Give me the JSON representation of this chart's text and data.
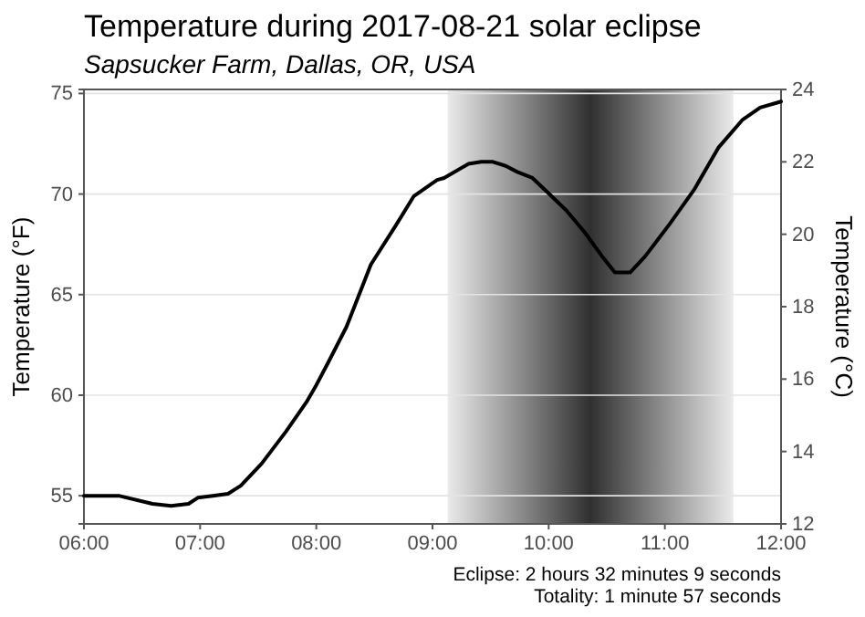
{
  "chart_data": {
    "type": "line",
    "title": "Temperature during 2017-08-21 solar eclipse",
    "subtitle": "Sapsucker Farm, Dallas, OR, USA",
    "ylabel": "Temperature (°F)",
    "y2label": "Temperature (°C)",
    "x": [
      6.0,
      6.3,
      6.59,
      6.75,
      6.9,
      6.98,
      7.11,
      7.24,
      7.35,
      7.53,
      7.74,
      7.92,
      8.0,
      8.1,
      8.26,
      8.47,
      8.68,
      8.84,
      9.04,
      9.1,
      9.31,
      9.42,
      9.52,
      9.63,
      9.73,
      9.86,
      9.97,
      10.15,
      10.31,
      10.46,
      10.57,
      10.7,
      10.83,
      11.04,
      11.25,
      11.46,
      11.67,
      11.82,
      12.0
    ],
    "series": [
      {
        "color": "#000000",
        "values": [
          55.0,
          55.0,
          54.6,
          54.5,
          54.6,
          54.9,
          55.0,
          55.1,
          55.5,
          56.6,
          58.2,
          59.7,
          60.5,
          61.6,
          63.4,
          66.5,
          68.4,
          69.9,
          70.7,
          70.8,
          71.5,
          71.6,
          71.6,
          71.4,
          71.1,
          70.8,
          70.2,
          69.2,
          68.1,
          66.9,
          66.1,
          66.1,
          66.9,
          68.5,
          70.2,
          72.3,
          73.7,
          74.3,
          74.6
        ]
      }
    ],
    "xlim": [
      6,
      12
    ],
    "xticks": [
      {
        "value": 6,
        "label": "06:00"
      },
      {
        "value": 7,
        "label": "07:00"
      },
      {
        "value": 8,
        "label": "08:00"
      },
      {
        "value": 9,
        "label": "09:00"
      },
      {
        "value": 10,
        "label": "10:00"
      },
      {
        "value": 11,
        "label": "11:00"
      },
      {
        "value": 12,
        "label": "12:00"
      }
    ],
    "ylim": [
      53.6,
      75.2
    ],
    "yticks": [
      55,
      60,
      65,
      70,
      75
    ],
    "y2lim": [
      12,
      24
    ],
    "y2ticks": [
      12,
      14,
      16,
      18,
      20,
      22,
      24
    ],
    "bands": [
      {
        "axis": "x",
        "from": 9.13,
        "to": 11.59,
        "color": "#303030"
      }
    ],
    "grid": "y",
    "annotations": [
      "Eclipse: 2 hours 32 minutes 9 seconds",
      "Totality: 1 minute 57 seconds"
    ]
  }
}
